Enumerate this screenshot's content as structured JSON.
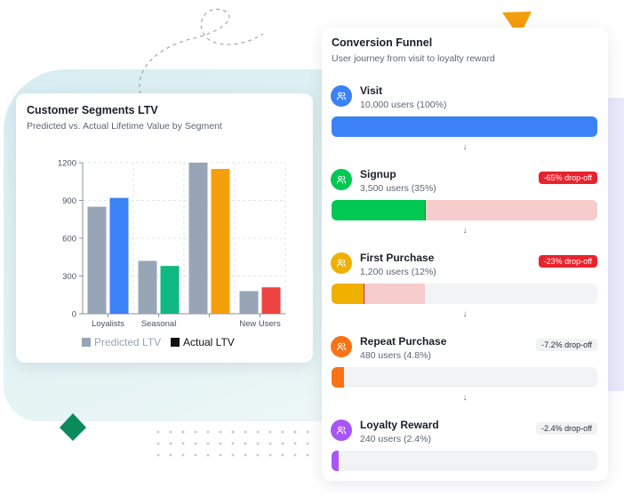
{
  "ltv_card": {
    "title": "Customer Segments LTV",
    "subtitle": "Predicted vs. Actual Lifetime Value by Segment"
  },
  "chart_data": {
    "type": "bar",
    "categories": [
      "Loyalists",
      "Seasonal",
      "",
      "New Users"
    ],
    "series": [
      {
        "name": "Predicted LTV",
        "values": [
          850,
          420,
          1200,
          180
        ]
      },
      {
        "name": "Actual LTV",
        "values": [
          920,
          380,
          1150,
          210
        ]
      }
    ],
    "ylim": [
      0,
      1200
    ],
    "yticks": [
      0,
      300,
      600,
      900,
      1200
    ],
    "grid": true,
    "legend": "bottom",
    "colors": {
      "predicted": "#97a5b6",
      "actual": [
        "#3b82f6",
        "#10b981",
        "#f59e0b",
        "#ef4444"
      ],
      "legend_actual_swatch": "#111111"
    }
  },
  "funnel": {
    "title": "Conversion Funnel",
    "subtitle": "User journey from visit to loyalty reward",
    "stages": [
      {
        "name": "Visit",
        "count": "10,000 users (100%)",
        "drop": "",
        "value": 1.0,
        "prev": 1.0,
        "color": "#3b82f6",
        "icon": "users-icon"
      },
      {
        "name": "Signup",
        "count": "3,500 users (35%)",
        "drop": "-65% drop-off",
        "value": 0.35,
        "prev": 1.0,
        "color": "#00c853",
        "icon": "users-icon"
      },
      {
        "name": "First Purchase",
        "count": "1,200 users (12%)",
        "drop": "-23% drop-off",
        "value": 0.12,
        "prev": 0.35,
        "color": "#f0b000",
        "icon": "users-icon"
      },
      {
        "name": "Repeat Purchase",
        "count": "480 users (4.8%)",
        "drop": "-7.2% drop-off",
        "value": 0.048,
        "prev": 0.12,
        "color": "#f97316",
        "icon": "users-icon"
      },
      {
        "name": "Loyalty Reward",
        "count": "240 users (2.4%)",
        "drop": "-2.4% drop-off",
        "value": 0.024,
        "prev": 0.048,
        "color": "#a855f7",
        "icon": "users-icon"
      }
    ],
    "arrow_glyph": "↓"
  }
}
